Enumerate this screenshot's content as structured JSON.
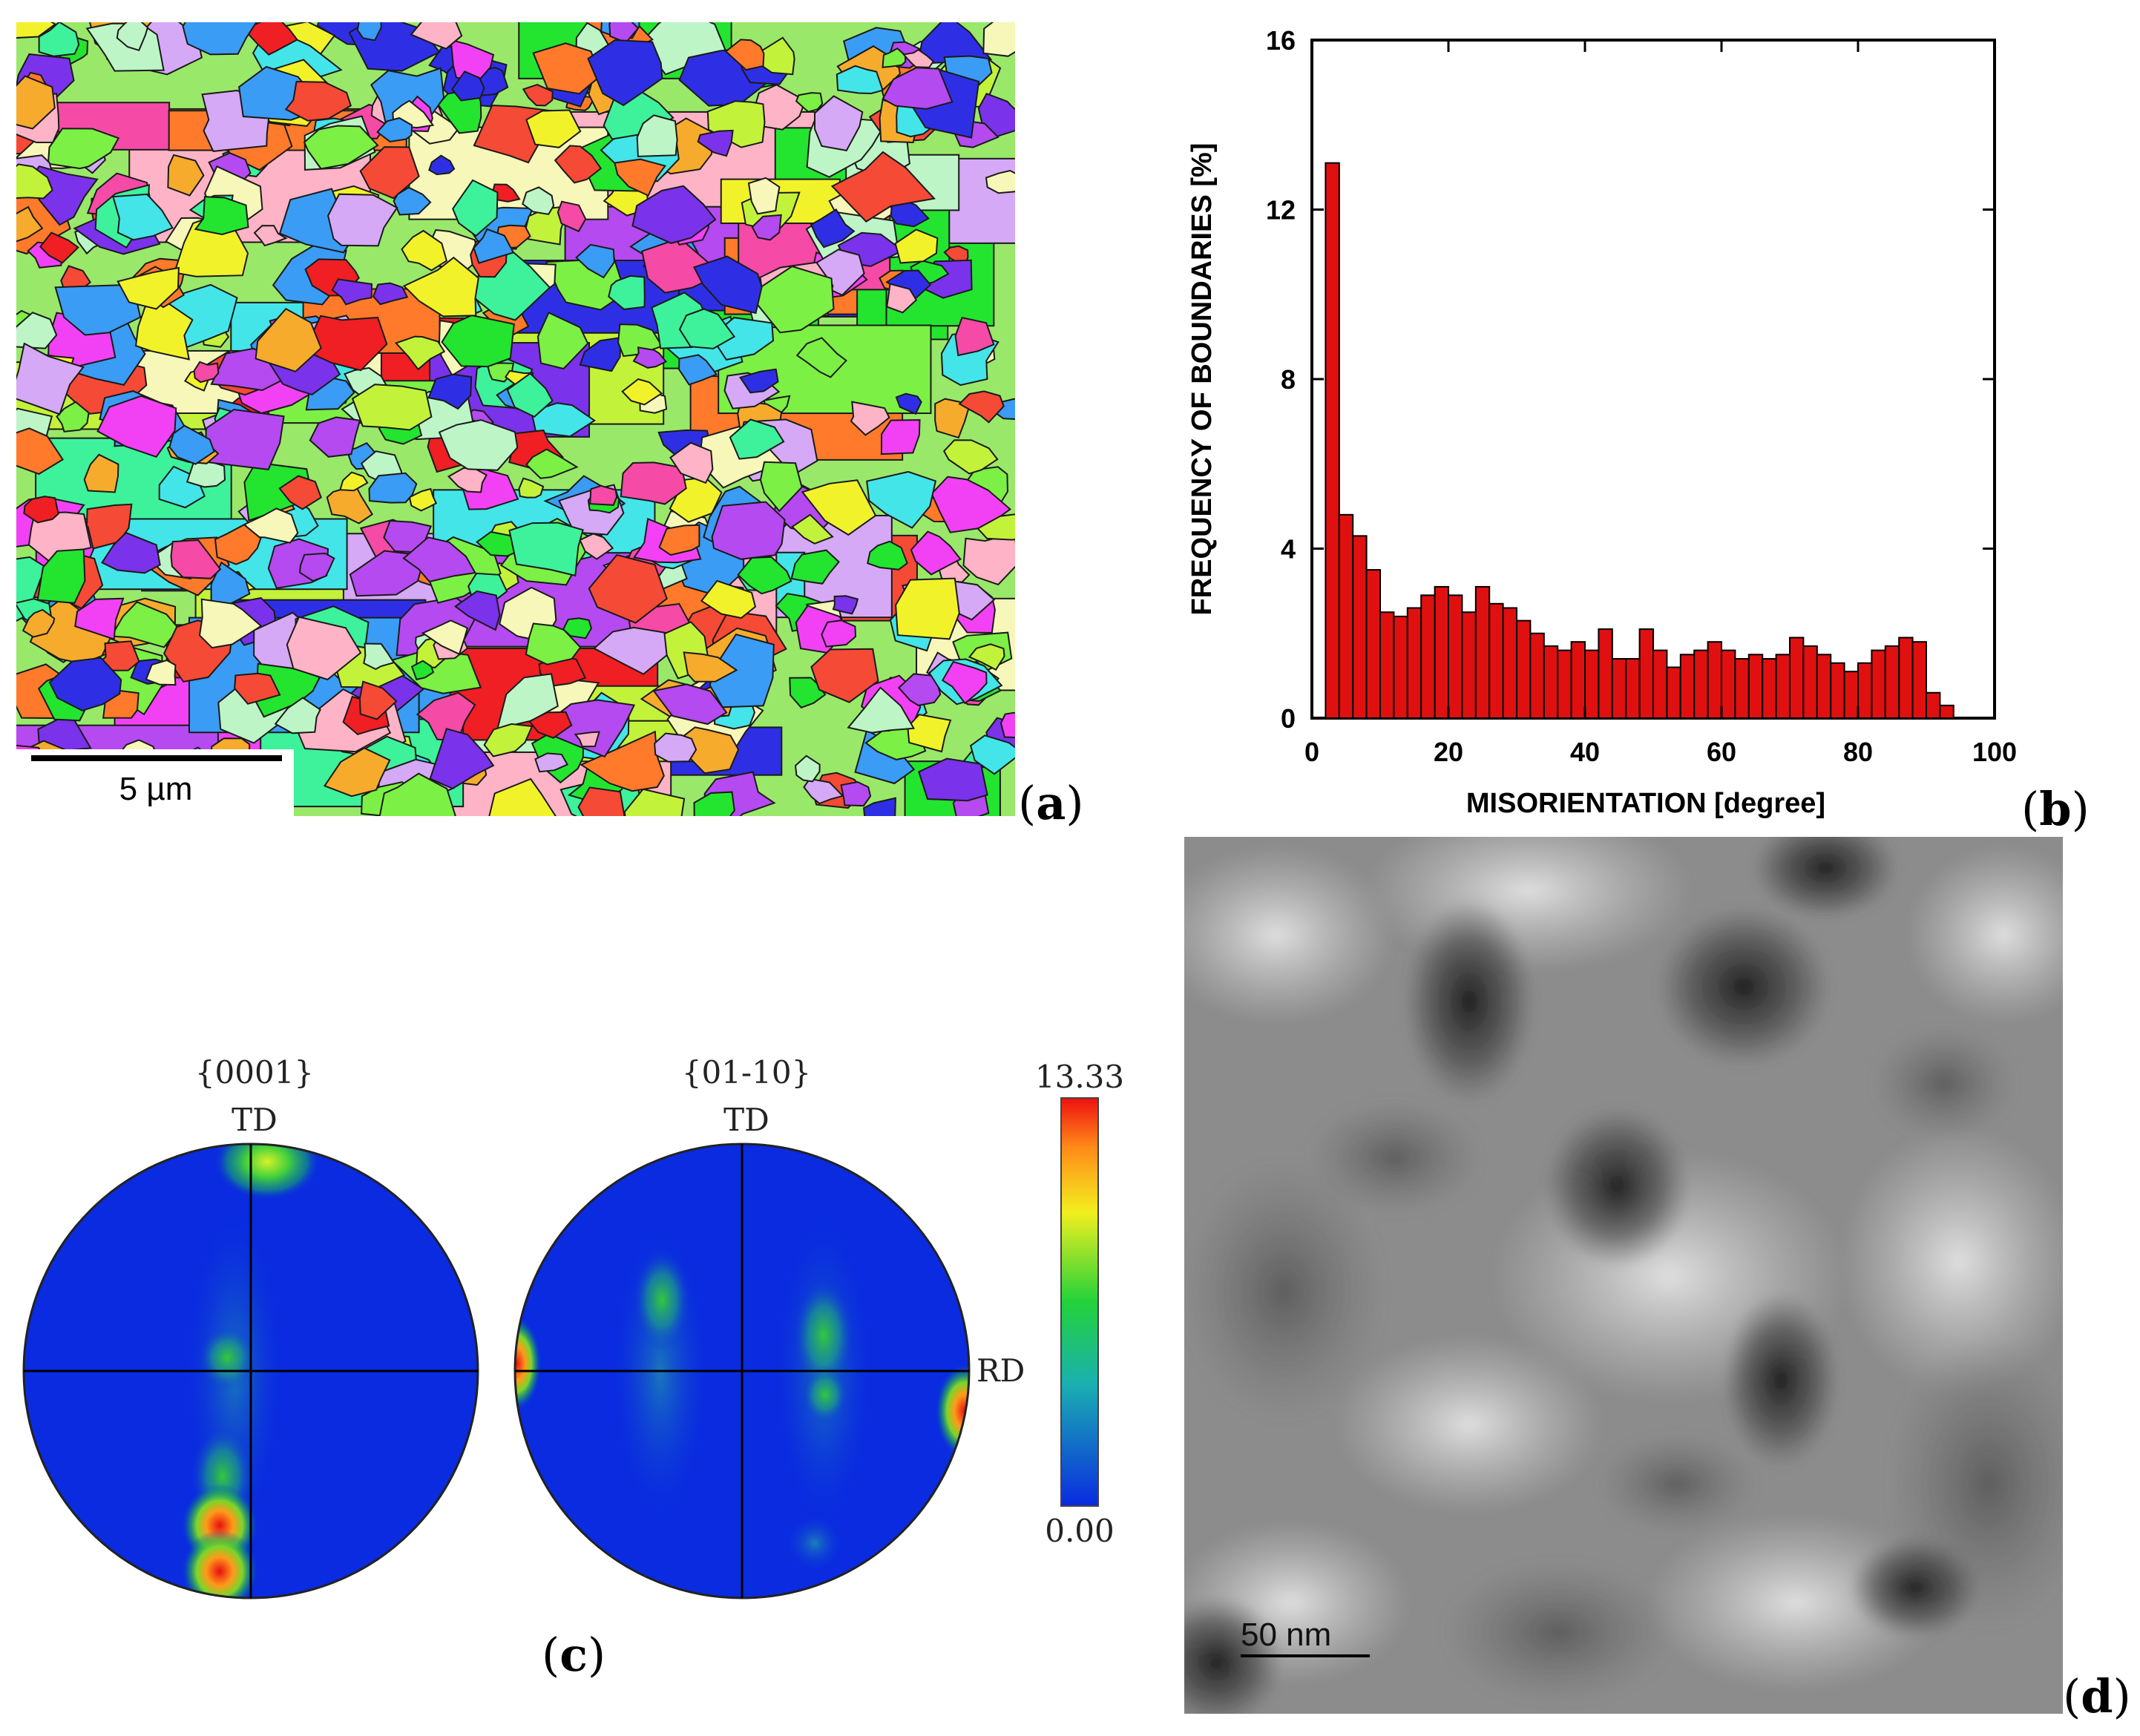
{
  "panel_labels": {
    "a": "a",
    "b": "b",
    "c": "c",
    "d": "d"
  },
  "panel_a": {
    "scale_bar_label": "5 µm",
    "palette": [
      "#ef1f24",
      "#f54a36",
      "#ff7a2a",
      "#f7ab2d",
      "#f2f22b",
      "#c3f23a",
      "#7cf044",
      "#23e52f",
      "#3df29a",
      "#43e5e8",
      "#3a9cf4",
      "#2e2fe4",
      "#7a32ea",
      "#b54af0",
      "#f241f4",
      "#f54aa5",
      "#ffb3c6",
      "#f6f7b8",
      "#bdf5c7",
      "#d5a9f5"
    ]
  },
  "chart_data": {
    "type": "bar",
    "xlabel": "MISORIENTATION [degree]",
    "ylabel": "FREQUENCY OF BOUNDARIES [%]",
    "xlim": [
      0,
      100
    ],
    "ylim": [
      0,
      16
    ],
    "xticks": [
      "0",
      "20",
      "40",
      "60",
      "80",
      "100"
    ],
    "yticks": [
      "0",
      "4",
      "8",
      "12",
      "16"
    ],
    "bin_width": 2,
    "bin_centers": [
      3,
      5,
      7,
      9,
      11,
      13,
      15,
      17,
      19,
      21,
      23,
      25,
      27,
      29,
      31,
      33,
      35,
      37,
      39,
      41,
      43,
      45,
      47,
      49,
      51,
      53,
      55,
      57,
      59,
      61,
      63,
      65,
      67,
      69,
      71,
      73,
      75,
      77,
      79,
      81,
      83,
      85,
      87,
      89,
      91,
      93
    ],
    "values": [
      13.1,
      4.8,
      4.3,
      3.5,
      2.5,
      2.4,
      2.6,
      2.9,
      3.1,
      2.9,
      2.5,
      3.1,
      2.7,
      2.6,
      2.3,
      2.0,
      1.7,
      1.6,
      1.8,
      1.6,
      2.1,
      1.4,
      1.4,
      2.1,
      1.6,
      1.2,
      1.5,
      1.6,
      1.8,
      1.6,
      1.4,
      1.5,
      1.4,
      1.5,
      1.9,
      1.7,
      1.5,
      1.3,
      1.1,
      1.3,
      1.6,
      1.7,
      1.9,
      1.8,
      0.6,
      0.3
    ],
    "bar_color": "#e01010"
  },
  "panel_c": {
    "left_title": "{0001}",
    "right_title": "{01-10}",
    "td_label": "TD",
    "rd_label": "RD",
    "colorbar_max": "13.33",
    "colorbar_min": "0.00",
    "colors": {
      "background": "#0a2be0",
      "mid": "#1fc23e",
      "high": "#ffe21a",
      "max": "#f01010"
    }
  },
  "panel_d": {
    "scale_bar_label": "50 nm"
  }
}
